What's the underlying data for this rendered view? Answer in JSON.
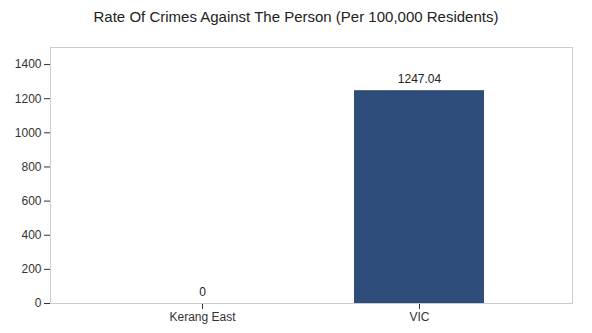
{
  "chart_data": {
    "type": "bar",
    "title": "Rate Of Crimes Against The Person (Per 100,000 Residents)",
    "categories": [
      "Kerang East",
      "VIC"
    ],
    "values": [
      0,
      1247.04
    ],
    "color": "#2e4d7b",
    "ylim": [
      0,
      1500
    ],
    "yticks": [
      0,
      200,
      400,
      600,
      800,
      1000,
      1200,
      1400
    ],
    "grid": false,
    "data_labels": true
  }
}
